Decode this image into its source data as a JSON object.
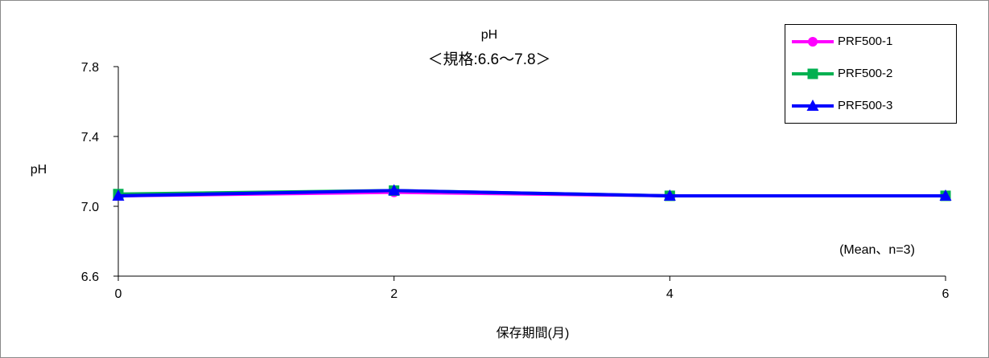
{
  "chart_data": {
    "type": "line",
    "title": "pH",
    "subtitle": "＜規格:6.6〜7.8＞",
    "xlabel": "保存期間(月)",
    "ylabel": "pH",
    "annotation": "(Mean、n=3)",
    "x": [
      0,
      2,
      4,
      6
    ],
    "xlim": [
      0,
      6
    ],
    "x_ticks": [
      "0",
      "2",
      "4",
      "6"
    ],
    "ylim": [
      6.6,
      7.8
    ],
    "y_ticks": [
      "6.6",
      "7.0",
      "7.4",
      "7.8"
    ],
    "grid": false,
    "legend_position": "top-right",
    "series": [
      {
        "name": "PRF500-1",
        "values": [
          7.06,
          7.08,
          7.06,
          7.06
        ],
        "color": "#ff00ff",
        "marker": "circle"
      },
      {
        "name": "PRF500-2",
        "values": [
          7.07,
          7.09,
          7.06,
          7.06
        ],
        "color": "#00b050",
        "marker": "square"
      },
      {
        "name": "PRF500-3",
        "values": [
          7.06,
          7.09,
          7.06,
          7.06
        ],
        "color": "#0000ff",
        "marker": "triangle"
      }
    ]
  }
}
